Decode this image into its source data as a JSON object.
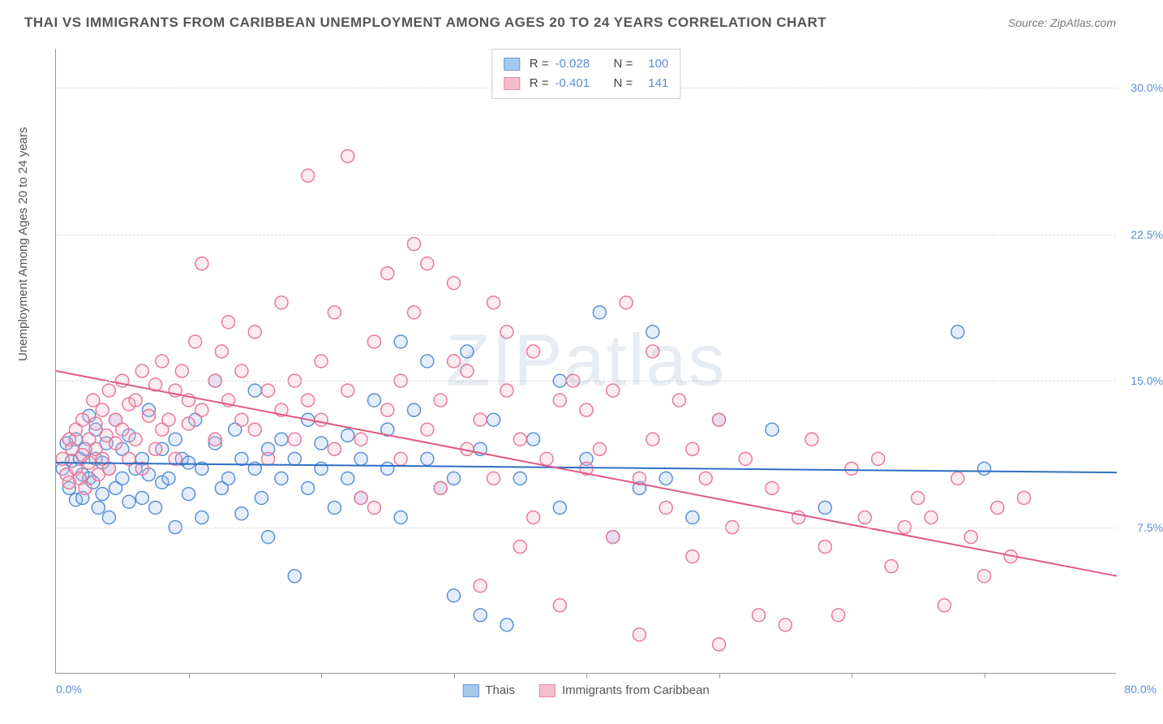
{
  "title": "THAI VS IMMIGRANTS FROM CARIBBEAN UNEMPLOYMENT AMONG AGES 20 TO 24 YEARS CORRELATION CHART",
  "source": "Source: ZipAtlas.com",
  "watermark": "ZIPatlas",
  "ylabel": "Unemployment Among Ages 20 to 24 years",
  "chart": {
    "type": "scatter",
    "xlim": [
      0,
      80
    ],
    "ylim": [
      0,
      32
    ],
    "x_min_label": "0.0%",
    "x_max_label": "80.0%",
    "yticks": [
      7.5,
      15.0,
      22.5,
      30.0
    ],
    "ytick_labels": [
      "7.5%",
      "15.0%",
      "22.5%",
      "30.0%"
    ],
    "xtick_positions": [
      10,
      20,
      30,
      40,
      50,
      60,
      70
    ],
    "background_color": "#ffffff",
    "grid_color": "#dddddd",
    "axis_color": "#999999",
    "tick_label_color": "#5b8fd6",
    "marker_radius": 8,
    "marker_stroke_width": 1.5,
    "marker_fill_opacity": 0.28,
    "trend_line_width": 2
  },
  "series": [
    {
      "name": "Thais",
      "fill": "#9ec3ec",
      "stroke": "#5b8fd6",
      "line_color": "#2f6fc4",
      "R": "-0.028",
      "N": "100",
      "trend": {
        "x1": 0,
        "y1": 10.8,
        "x2": 80,
        "y2": 10.3
      },
      "points": [
        [
          0.5,
          10.5
        ],
        [
          0.8,
          11.8
        ],
        [
          1.0,
          9.5
        ],
        [
          1.2,
          10.9
        ],
        [
          1.5,
          12.0
        ],
        [
          1.5,
          8.9
        ],
        [
          1.8,
          11.0
        ],
        [
          2.0,
          10.2
        ],
        [
          2.0,
          9.0
        ],
        [
          2.2,
          11.5
        ],
        [
          2.5,
          10.0
        ],
        [
          2.5,
          13.2
        ],
        [
          2.8,
          9.8
        ],
        [
          3.0,
          12.5
        ],
        [
          3.0,
          11.0
        ],
        [
          3.2,
          8.5
        ],
        [
          3.5,
          10.8
        ],
        [
          3.5,
          9.2
        ],
        [
          3.8,
          11.8
        ],
        [
          4.0,
          10.5
        ],
        [
          4.0,
          8.0
        ],
        [
          4.5,
          13.0
        ],
        [
          4.5,
          9.5
        ],
        [
          5.0,
          11.5
        ],
        [
          5.0,
          10.0
        ],
        [
          5.5,
          8.8
        ],
        [
          5.5,
          12.2
        ],
        [
          6.0,
          10.5
        ],
        [
          6.5,
          9.0
        ],
        [
          6.5,
          11.0
        ],
        [
          7.0,
          13.5
        ],
        [
          7.0,
          10.2
        ],
        [
          7.5,
          8.5
        ],
        [
          8.0,
          9.8
        ],
        [
          8.0,
          11.5
        ],
        [
          8.5,
          10.0
        ],
        [
          9.0,
          7.5
        ],
        [
          9.0,
          12.0
        ],
        [
          9.5,
          11.0
        ],
        [
          10.0,
          9.2
        ],
        [
          10.0,
          10.8
        ],
        [
          10.5,
          13.0
        ],
        [
          11.0,
          8.0
        ],
        [
          11.0,
          10.5
        ],
        [
          12.0,
          11.8
        ],
        [
          12.0,
          15.0
        ],
        [
          12.5,
          9.5
        ],
        [
          13.0,
          10.0
        ],
        [
          13.5,
          12.5
        ],
        [
          14.0,
          11.0
        ],
        [
          14.0,
          8.2
        ],
        [
          15.0,
          14.5
        ],
        [
          15.0,
          10.5
        ],
        [
          15.5,
          9.0
        ],
        [
          16.0,
          11.5
        ],
        [
          16.0,
          7.0
        ],
        [
          17.0,
          12.0
        ],
        [
          17.0,
          10.0
        ],
        [
          18.0,
          5.0
        ],
        [
          18.0,
          11.0
        ],
        [
          19.0,
          9.5
        ],
        [
          19.0,
          13.0
        ],
        [
          20.0,
          10.5
        ],
        [
          20.0,
          11.8
        ],
        [
          21.0,
          8.5
        ],
        [
          22.0,
          12.2
        ],
        [
          22.0,
          10.0
        ],
        [
          23.0,
          9.0
        ],
        [
          23.0,
          11.0
        ],
        [
          24.0,
          14.0
        ],
        [
          25.0,
          10.5
        ],
        [
          25.0,
          12.5
        ],
        [
          26.0,
          17.0
        ],
        [
          26.0,
          8.0
        ],
        [
          27.0,
          13.5
        ],
        [
          28.0,
          11.0
        ],
        [
          28.0,
          16.0
        ],
        [
          29.0,
          9.5
        ],
        [
          30.0,
          4.0
        ],
        [
          30.0,
          10.0
        ],
        [
          31.0,
          16.5
        ],
        [
          32.0,
          3.0
        ],
        [
          32.0,
          11.5
        ],
        [
          33.0,
          13.0
        ],
        [
          34.0,
          2.5
        ],
        [
          35.0,
          10.0
        ],
        [
          36.0,
          12.0
        ],
        [
          38.0,
          8.5
        ],
        [
          38.0,
          15.0
        ],
        [
          40.0,
          11.0
        ],
        [
          41.0,
          18.5
        ],
        [
          42.0,
          7.0
        ],
        [
          44.0,
          9.5
        ],
        [
          45.0,
          17.5
        ],
        [
          46.0,
          10.0
        ],
        [
          48.0,
          8.0
        ],
        [
          50.0,
          13.0
        ],
        [
          54.0,
          12.5
        ],
        [
          58.0,
          8.5
        ],
        [
          68.0,
          17.5
        ],
        [
          70.0,
          10.5
        ]
      ]
    },
    {
      "name": "Immigrants from Caribbean",
      "fill": "#f5b8c8",
      "stroke": "#e77a9a",
      "line_color": "#e05a84",
      "R": "-0.401",
      "N": "141",
      "trend": {
        "x1": 0,
        "y1": 15.5,
        "x2": 80,
        "y2": 5.0
      },
      "points": [
        [
          0.5,
          11.0
        ],
        [
          0.8,
          10.2
        ],
        [
          1.0,
          12.0
        ],
        [
          1.0,
          9.8
        ],
        [
          1.2,
          11.5
        ],
        [
          1.5,
          10.5
        ],
        [
          1.5,
          12.5
        ],
        [
          1.8,
          10.0
        ],
        [
          2.0,
          13.0
        ],
        [
          2.0,
          11.2
        ],
        [
          2.2,
          9.5
        ],
        [
          2.5,
          12.0
        ],
        [
          2.5,
          10.8
        ],
        [
          2.8,
          14.0
        ],
        [
          3.0,
          11.5
        ],
        [
          3.0,
          12.8
        ],
        [
          3.2,
          10.2
        ],
        [
          3.5,
          13.5
        ],
        [
          3.5,
          11.0
        ],
        [
          3.8,
          12.2
        ],
        [
          4.0,
          14.5
        ],
        [
          4.0,
          10.5
        ],
        [
          4.5,
          13.0
        ],
        [
          4.5,
          11.8
        ],
        [
          5.0,
          12.5
        ],
        [
          5.0,
          15.0
        ],
        [
          5.5,
          13.8
        ],
        [
          5.5,
          11.0
        ],
        [
          6.0,
          14.0
        ],
        [
          6.0,
          12.0
        ],
        [
          6.5,
          15.5
        ],
        [
          6.5,
          10.5
        ],
        [
          7.0,
          13.2
        ],
        [
          7.5,
          14.8
        ],
        [
          7.5,
          11.5
        ],
        [
          8.0,
          12.5
        ],
        [
          8.0,
          16.0
        ],
        [
          8.5,
          13.0
        ],
        [
          9.0,
          14.5
        ],
        [
          9.0,
          11.0
        ],
        [
          9.5,
          15.5
        ],
        [
          10.0,
          12.8
        ],
        [
          10.0,
          14.0
        ],
        [
          10.5,
          17.0
        ],
        [
          11.0,
          13.5
        ],
        [
          11.0,
          21.0
        ],
        [
          12.0,
          15.0
        ],
        [
          12.0,
          12.0
        ],
        [
          12.5,
          16.5
        ],
        [
          13.0,
          14.0
        ],
        [
          13.0,
          18.0
        ],
        [
          14.0,
          13.0
        ],
        [
          14.0,
          15.5
        ],
        [
          15.0,
          12.5
        ],
        [
          15.0,
          17.5
        ],
        [
          16.0,
          14.5
        ],
        [
          16.0,
          11.0
        ],
        [
          17.0,
          19.0
        ],
        [
          17.0,
          13.5
        ],
        [
          18.0,
          15.0
        ],
        [
          18.0,
          12.0
        ],
        [
          19.0,
          14.0
        ],
        [
          19.0,
          25.5
        ],
        [
          20.0,
          16.0
        ],
        [
          20.0,
          13.0
        ],
        [
          21.0,
          11.5
        ],
        [
          21.0,
          18.5
        ],
        [
          22.0,
          26.5
        ],
        [
          22.0,
          14.5
        ],
        [
          23.0,
          9.0
        ],
        [
          23.0,
          12.0
        ],
        [
          24.0,
          8.5
        ],
        [
          24.0,
          17.0
        ],
        [
          25.0,
          13.5
        ],
        [
          25.0,
          20.5
        ],
        [
          26.0,
          11.0
        ],
        [
          26.0,
          15.0
        ],
        [
          27.0,
          22.0
        ],
        [
          27.0,
          18.5
        ],
        [
          28.0,
          12.5
        ],
        [
          28.0,
          21.0
        ],
        [
          29.0,
          14.0
        ],
        [
          29.0,
          9.5
        ],
        [
          30.0,
          16.0
        ],
        [
          30.0,
          20.0
        ],
        [
          31.0,
          11.5
        ],
        [
          31.0,
          15.5
        ],
        [
          32.0,
          4.5
        ],
        [
          32.0,
          13.0
        ],
        [
          33.0,
          19.0
        ],
        [
          33.0,
          10.0
        ],
        [
          34.0,
          17.5
        ],
        [
          34.0,
          14.5
        ],
        [
          35.0,
          6.5
        ],
        [
          35.0,
          12.0
        ],
        [
          36.0,
          16.5
        ],
        [
          36.0,
          8.0
        ],
        [
          37.0,
          11.0
        ],
        [
          38.0,
          14.0
        ],
        [
          38.0,
          3.5
        ],
        [
          39.0,
          15.0
        ],
        [
          40.0,
          10.5
        ],
        [
          40.0,
          13.5
        ],
        [
          41.0,
          11.5
        ],
        [
          42.0,
          7.0
        ],
        [
          42.0,
          14.5
        ],
        [
          43.0,
          19.0
        ],
        [
          44.0,
          10.0
        ],
        [
          44.0,
          2.0
        ],
        [
          45.0,
          16.5
        ],
        [
          45.0,
          12.0
        ],
        [
          46.0,
          8.5
        ],
        [
          47.0,
          14.0
        ],
        [
          48.0,
          6.0
        ],
        [
          48.0,
          11.5
        ],
        [
          49.0,
          10.0
        ],
        [
          50.0,
          1.5
        ],
        [
          50.0,
          13.0
        ],
        [
          51.0,
          7.5
        ],
        [
          52.0,
          11.0
        ],
        [
          53.0,
          3.0
        ],
        [
          54.0,
          9.5
        ],
        [
          55.0,
          2.5
        ],
        [
          56.0,
          8.0
        ],
        [
          57.0,
          12.0
        ],
        [
          58.0,
          6.5
        ],
        [
          59.0,
          3.0
        ],
        [
          60.0,
          10.5
        ],
        [
          61.0,
          8.0
        ],
        [
          62.0,
          11.0
        ],
        [
          63.0,
          5.5
        ],
        [
          64.0,
          7.5
        ],
        [
          65.0,
          9.0
        ],
        [
          66.0,
          8.0
        ],
        [
          67.0,
          3.5
        ],
        [
          68.0,
          10.0
        ],
        [
          69.0,
          7.0
        ],
        [
          70.0,
          5.0
        ],
        [
          71.0,
          8.5
        ],
        [
          72.0,
          6.0
        ],
        [
          73.0,
          9.0
        ]
      ]
    }
  ],
  "legend_bottom": [
    {
      "label": "Thais",
      "series_index": 0
    },
    {
      "label": "Immigrants from Caribbean",
      "series_index": 1
    }
  ]
}
